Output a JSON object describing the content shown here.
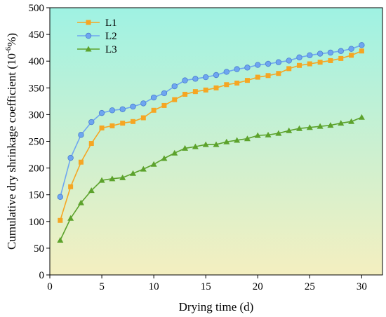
{
  "chart_data": {
    "type": "line",
    "title": "",
    "xlabel": "Drying time (d)",
    "ylabel_main": "Cumulative dry shrinkage coefficient (10",
    "ylabel_sup": "-6",
    "ylabel_end": "%)",
    "xlim": [
      0,
      32
    ],
    "ylim": [
      0,
      500
    ],
    "xticks": [
      0,
      5,
      10,
      15,
      20,
      25,
      30
    ],
    "yticks": [
      0,
      50,
      100,
      150,
      200,
      250,
      300,
      350,
      400,
      450,
      500
    ],
    "background_gradient": [
      "#9ff2e3",
      "#f4efc0"
    ],
    "legend_position": "top-left",
    "x": [
      1,
      2,
      3,
      4,
      5,
      6,
      7,
      8,
      9,
      10,
      11,
      12,
      13,
      14,
      15,
      16,
      17,
      18,
      19,
      20,
      21,
      22,
      23,
      24,
      25,
      26,
      27,
      28,
      29,
      30
    ],
    "series": [
      {
        "name": "L1",
        "color": "#f5a623",
        "marker": "square",
        "values": [
          102,
          165,
          211,
          246,
          275,
          279,
          284,
          287,
          294,
          308,
          317,
          328,
          338,
          343,
          346,
          350,
          356,
          359,
          364,
          370,
          373,
          377,
          386,
          392,
          395,
          398,
          401,
          405,
          411,
          419
        ]
      },
      {
        "name": "L2",
        "color": "#6ea6f0",
        "marker": "circle",
        "values": [
          146,
          219,
          262,
          286,
          303,
          308,
          310,
          315,
          321,
          332,
          340,
          353,
          364,
          367,
          370,
          374,
          380,
          385,
          388,
          393,
          395,
          398,
          401,
          407,
          411,
          414,
          416,
          419,
          423,
          430
        ]
      },
      {
        "name": "L3",
        "color": "#5ca22c",
        "marker": "triangle",
        "values": [
          65,
          106,
          135,
          158,
          177,
          180,
          182,
          190,
          198,
          207,
          218,
          228,
          237,
          240,
          244,
          244,
          249,
          252,
          255,
          261,
          262,
          265,
          270,
          274,
          276,
          278,
          280,
          284,
          287,
          295
        ]
      }
    ]
  }
}
